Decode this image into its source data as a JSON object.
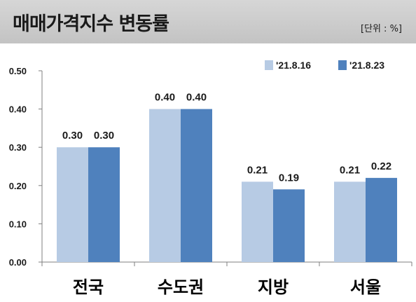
{
  "header": {
    "title": "매매가격지수 변동률",
    "unit": "[단위 : %]"
  },
  "chart_data": {
    "type": "bar",
    "title": "매매가격지수 변동률",
    "unit_label": "[단위 : %]",
    "categories": [
      "전국",
      "수도권",
      "지방",
      "서울"
    ],
    "series": [
      {
        "name": "'21.8.16",
        "values": [
          0.3,
          0.4,
          0.21,
          0.21
        ],
        "color": "#b7cbe4",
        "labels": [
          "0.30",
          "0.40",
          "0.21",
          "0.21"
        ]
      },
      {
        "name": "'21.8.23",
        "values": [
          0.3,
          0.4,
          0.19,
          0.22
        ],
        "color": "#4f81bd",
        "labels": [
          "0.30",
          "0.40",
          "0.19",
          "0.22"
        ]
      }
    ],
    "ylim": [
      0,
      0.5
    ],
    "yticks": [
      "0.00",
      "0.10",
      "0.20",
      "0.30",
      "0.40",
      "0.50"
    ],
    "xlabel": "",
    "ylabel": "",
    "grid": false,
    "legend_position": "top-right"
  }
}
